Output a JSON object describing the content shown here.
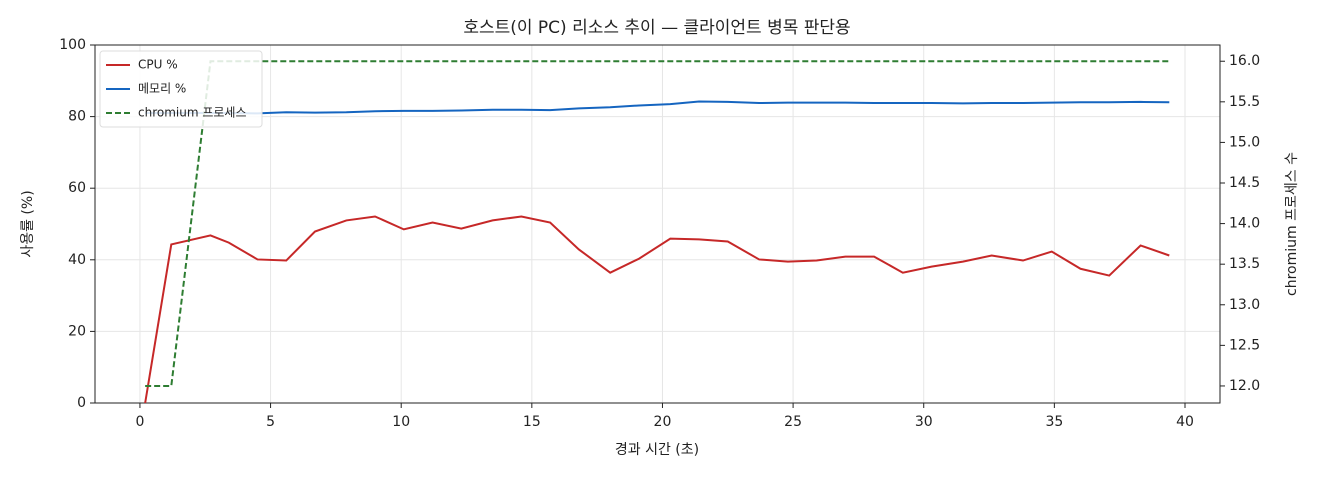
{
  "chart_data": {
    "type": "line",
    "title": "호스트(이 PC) 리소스 추이 — 클라이언트 병목 판단용",
    "x_label": "경과 시간 (초)",
    "y_label": "사용률 (%)",
    "y2_label": "chromium 프로세스 수",
    "x": [
      0.2,
      1.2,
      2.7,
      3.4,
      4.5,
      5.6,
      6.7,
      7.9,
      9.0,
      10.1,
      11.2,
      12.3,
      13.5,
      14.6,
      15.7,
      16.8,
      18.0,
      19.1,
      20.3,
      21.4,
      22.5,
      23.7,
      24.8,
      25.9,
      27.0,
      28.1,
      29.2,
      30.3,
      31.5,
      32.6,
      33.8,
      34.9,
      36.0,
      37.1,
      38.3,
      39.4
    ],
    "series": [
      {
        "name": "CPU %",
        "color": "#c62828",
        "linestyle": "solid",
        "values": [
          0,
          44.3,
          46.8,
          44.8,
          40.1,
          39.8,
          47.9,
          51.0,
          52.1,
          48.5,
          50.4,
          48.7,
          51.0,
          52.1,
          50.4,
          42.9,
          36.4,
          40.3,
          45.9,
          45.7,
          45.1,
          40.1,
          39.5,
          39.8,
          40.9,
          40.9,
          36.4,
          38.1,
          39.5,
          41.2,
          39.8,
          42.3,
          37.5,
          35.6,
          44.0,
          41.2
        ]
      },
      {
        "name": "메모리 %",
        "color": "#1565c0",
        "linestyle": "solid",
        "values": [
          81,
          81,
          81,
          81,
          80.9,
          81.2,
          81.1,
          81.2,
          81.5,
          81.6,
          81.6,
          81.7,
          81.9,
          81.9,
          81.8,
          82.3,
          82.6,
          83.1,
          83.5,
          84.2,
          84.1,
          83.8,
          83.9,
          83.9,
          83.9,
          83.8,
          83.8,
          83.8,
          83.7,
          83.8,
          83.8,
          83.9,
          84.0,
          84.0,
          84.1,
          84.0
        ]
      },
      {
        "name": "chromium 프로세스",
        "color": "#2e7d32",
        "linestyle": "dashed",
        "axis": "y2",
        "values": [
          12,
          12,
          16,
          16,
          16,
          16,
          16,
          16,
          16,
          16,
          16,
          16,
          16,
          16,
          16,
          16,
          16,
          16,
          16,
          16,
          16,
          16,
          16,
          16,
          16,
          16,
          16,
          16,
          16,
          16,
          16,
          16,
          16,
          16,
          16,
          16
        ]
      }
    ],
    "xlim": [
      -1.72,
      41.34
    ],
    "xticks": [
      0,
      5,
      10,
      15,
      20,
      25,
      30,
      35,
      40
    ],
    "ylim": [
      0,
      100
    ],
    "yticks": [
      0,
      20,
      40,
      60,
      80,
      100
    ],
    "y2lim": [
      11.79,
      16.2
    ],
    "y2ticks": [
      {
        "value": 12,
        "label": "12.0"
      },
      {
        "value": 12.5,
        "label": "12.5"
      },
      {
        "value": 13,
        "label": "13.0"
      },
      {
        "value": 13.5,
        "label": "13.5"
      },
      {
        "value": 14,
        "label": "14.0"
      },
      {
        "value": 14.5,
        "label": "14.5"
      },
      {
        "value": 15,
        "label": "15.0"
      },
      {
        "value": 15.5,
        "label": "15.5"
      },
      {
        "value": 16,
        "label": "16.0"
      }
    ],
    "grid": true,
    "legend": "upper-left"
  }
}
